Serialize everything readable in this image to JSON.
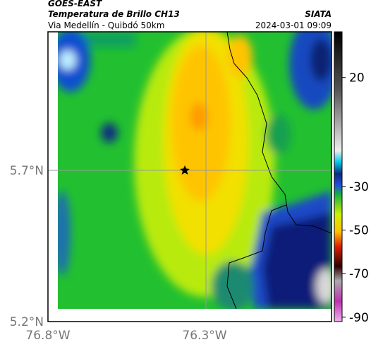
{
  "header": {
    "satellite": "GOES-EAST",
    "product": "Temperatura de Brillo CH13",
    "route": "Via Medellín - Quibdó 50km",
    "source": "SIATA",
    "timestamp": "2024-03-01 09:09"
  },
  "axes": {
    "y_labels": [
      "5.7°N",
      "5.2°N"
    ],
    "x_labels": [
      "76.8°W",
      "76.3°W"
    ]
  },
  "colorbar": {
    "ticks": [
      20,
      -30,
      -50,
      -70,
      -90
    ],
    "range": [
      41,
      -92
    ]
  }
}
